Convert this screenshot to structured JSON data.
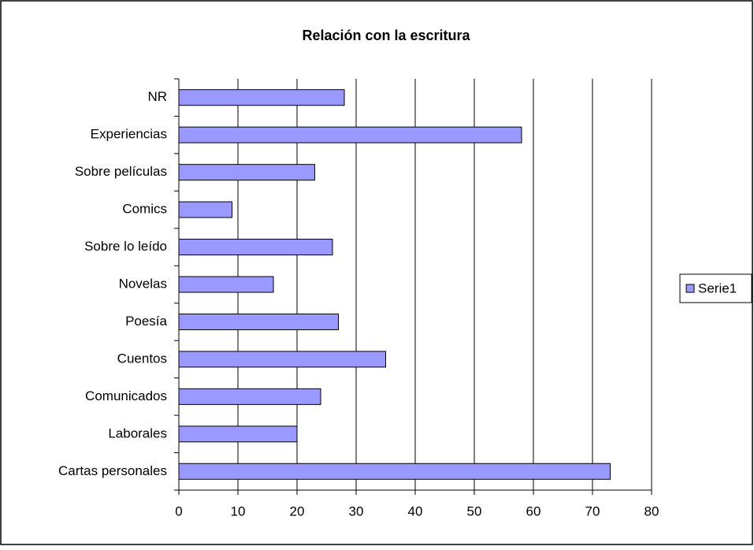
{
  "chart_data": {
    "type": "bar",
    "orientation": "horizontal",
    "title": "Relación con la escritura",
    "categories": [
      "NR",
      "Experiencias",
      "Sobre películas",
      "Comics",
      "Sobre lo leído",
      "Novelas",
      "Poesía",
      "Cuentos",
      "Comunicados",
      "Laborales",
      "Cartas personales"
    ],
    "series": [
      {
        "name": "Serie1",
        "color": "#9999ff",
        "values": [
          28,
          58,
          23,
          9,
          26,
          16,
          27,
          35,
          24,
          20,
          73
        ]
      }
    ],
    "xlim": [
      0,
      80
    ],
    "xticks": [
      0,
      10,
      20,
      30,
      40,
      50,
      60,
      70,
      80
    ],
    "grid": true,
    "legend": "right"
  }
}
